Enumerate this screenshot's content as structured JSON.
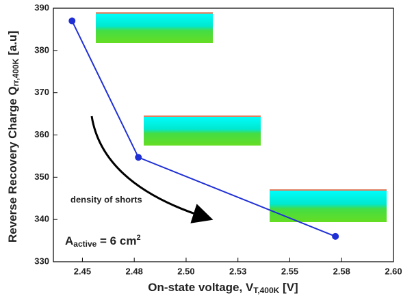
{
  "chart_data": {
    "type": "line",
    "x_label": {
      "main": "On-state voltage, V",
      "sub": "T,400K",
      "tail": " [V]"
    },
    "y_label": {
      "main": "Reverse Recovery Charge Q",
      "sub": "rr,400K",
      "tail": " [a.u]"
    },
    "annotations": {
      "arrow_text": "density of shorts",
      "area": {
        "main": "A",
        "sub": "active",
        "mid": " = 6 cm",
        "sup": "2"
      }
    },
    "x": [
      2.445,
      2.477,
      2.572
    ],
    "series": [
      {
        "color": "#1f2fd6",
        "values": [
          387,
          354.7,
          336
        ]
      }
    ],
    "xlim": [
      2.436,
      2.6
    ],
    "xticks": [
      2.45,
      {
        "value": 2.475,
        "label": "2.48"
      },
      {
        "value": 2.5,
        "label": "2.50"
      },
      {
        "value": 2.525,
        "label": "2.53"
      },
      2.55,
      {
        "value": 2.575,
        "label": "2.58"
      },
      {
        "value": 2.6,
        "label": "2.60"
      }
    ],
    "ylim": [
      330,
      390
    ],
    "yticks": [
      330,
      340,
      350,
      360,
      370,
      380,
      390
    ]
  }
}
